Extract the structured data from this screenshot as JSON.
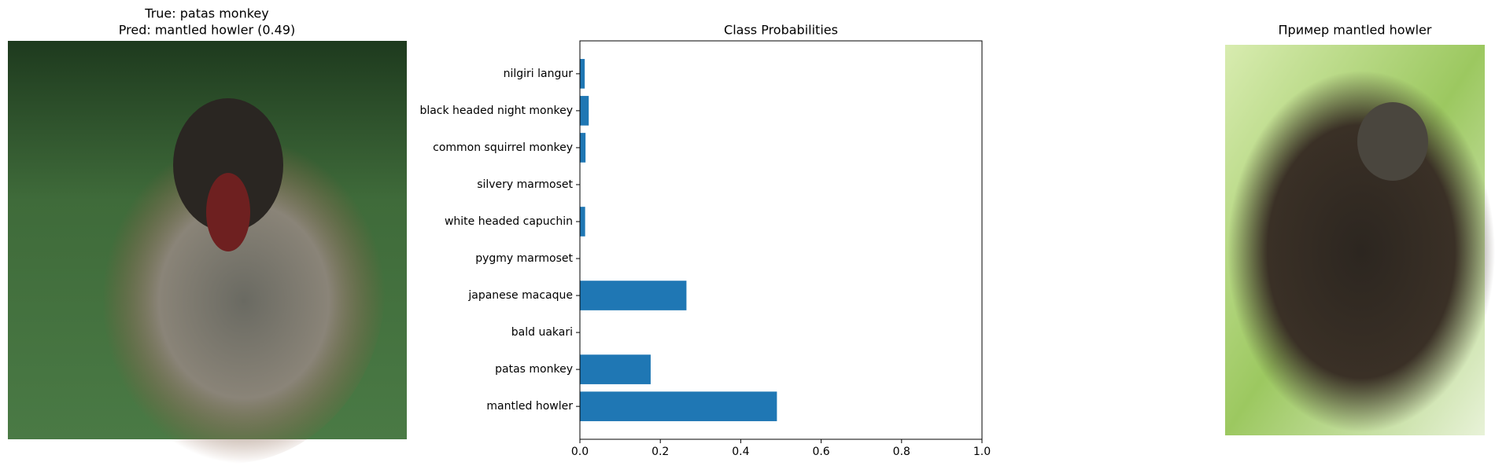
{
  "left_panel": {
    "title_lines": [
      "True: patas monkey",
      "Pred: mantled howler (0.49)"
    ]
  },
  "right_panel": {
    "title": "Пример mantled howler"
  },
  "chart_data": {
    "type": "barh",
    "title": "Class Probabilities",
    "categories": [
      "mantled howler",
      "patas monkey",
      "bald uakari",
      "japanese macaque",
      "pygmy marmoset",
      "white headed capuchin",
      "silvery marmoset",
      "common squirrel monkey",
      "black headed night monkey",
      "nilgiri langur"
    ],
    "values": [
      0.49,
      0.176,
      0.001,
      0.265,
      0.001,
      0.013,
      0.001,
      0.014,
      0.022,
      0.012
    ],
    "color": "#1f77b4",
    "xlim": [
      0,
      1
    ],
    "xticks": [
      {
        "value": 0,
        "label": "0.0"
      },
      0.2,
      0.4,
      0.6,
      0.8,
      {
        "value": 1,
        "label": "1.0"
      }
    ]
  }
}
